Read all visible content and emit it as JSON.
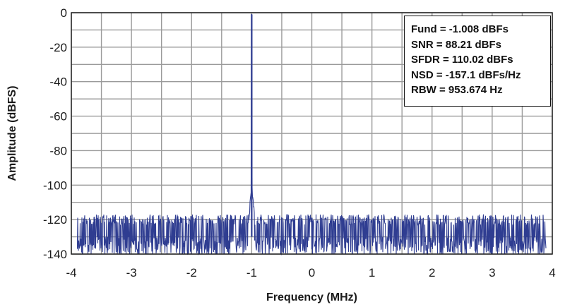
{
  "chart_data": {
    "type": "line",
    "title": "",
    "xlabel": "Frequency (MHz)",
    "ylabel": "Amplitude (dBFS)",
    "xlim": [
      -4,
      4
    ],
    "ylim": [
      -140,
      0
    ],
    "x_ticks": [
      -4,
      -3,
      -2,
      -1,
      0,
      1,
      2,
      3,
      4
    ],
    "y_ticks": [
      0,
      -20,
      -40,
      -60,
      -80,
      -100,
      -120,
      -140
    ],
    "x_tick_labels": [
      "-4",
      "-3",
      "-2",
      "-1",
      "0",
      "1",
      "2",
      "3",
      "4"
    ],
    "y_tick_labels": [
      "0",
      "-20",
      "-40",
      "-60",
      "-80",
      "-100",
      "-120",
      "-140"
    ],
    "grid": "on, minor gridlines every 0.5 MHz and 10 dB",
    "series": [
      {
        "color": "#2f3d91",
        "description": "FFT noise floor spanning approximately -120 to -140 dBFS across -3.9 to 3.9 MHz, single tone at -1 MHz",
        "noise_floor_top": -120,
        "noise_floor_bottom": -140,
        "x_range": [
          -3.9,
          3.9
        ],
        "peak": {
          "x": -1.0,
          "y": -1.008
        },
        "near_carrier_skirt": [
          {
            "x": -1.02,
            "y": -110
          },
          {
            "x": -1.01,
            "y": -100
          },
          {
            "x": -1.0,
            "y": -1.008
          },
          {
            "x": -0.99,
            "y": -98
          },
          {
            "x": -0.98,
            "y": -110
          }
        ]
      }
    ],
    "annotations": [
      "Fund = -1.008 dBFs",
      "SNR = 88.21 dBFs",
      "SFDR = 110.02 dBFs",
      "NSD = -157.1 dBFs/Hz",
      "RBW = 953.674 Hz"
    ],
    "legend": "top-right text box"
  }
}
